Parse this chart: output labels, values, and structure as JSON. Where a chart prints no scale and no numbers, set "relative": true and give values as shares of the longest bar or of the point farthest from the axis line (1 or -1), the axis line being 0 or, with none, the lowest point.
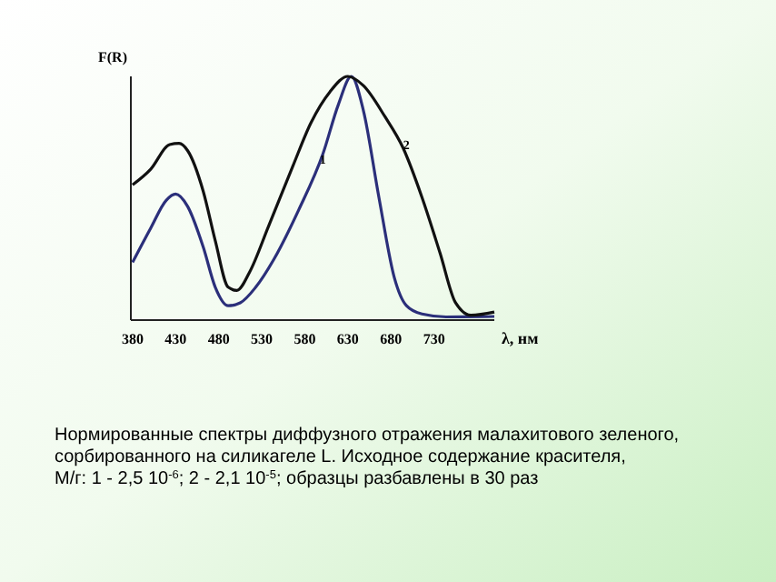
{
  "chart_data": {
    "type": "line",
    "relative": true,
    "ylabel": "F(R)",
    "xlabel": "λ, нм",
    "xlim": [
      378,
      800
    ],
    "xticks": [
      380,
      430,
      480,
      530,
      580,
      630,
      680,
      730
    ],
    "grid": false,
    "line_style": "solid",
    "series": [
      {
        "color": "#2b2f7a",
        "x": [
          380,
          401,
          419,
          430,
          444,
          462,
          476,
          491,
          505,
          523,
          544,
          573,
          601,
          619,
          634,
          648,
          666,
          684,
          698,
          716,
          744,
          800
        ],
        "values": [
          0.237,
          0.377,
          0.491,
          0.517,
          0.466,
          0.3,
          0.135,
          0.059,
          0.071,
          0.135,
          0.249,
          0.453,
          0.682,
          0.885,
          1.0,
          0.86,
          0.504,
          0.173,
          0.059,
          0.025,
          0.013,
          0.015
        ]
      },
      {
        "color": "#111111",
        "x": [
          380,
          401,
          423,
          434,
          444,
          462,
          476,
          491,
          501,
          516,
          537,
          566,
          587,
          609,
          630,
          648,
          673,
          694,
          716,
          737,
          755,
          773,
          800
        ],
        "values": [
          0.555,
          0.619,
          0.72,
          0.725,
          0.695,
          0.529,
          0.326,
          0.135,
          0.122,
          0.198,
          0.377,
          0.631,
          0.809,
          0.936,
          1.0,
          0.962,
          0.835,
          0.707,
          0.504,
          0.275,
          0.071,
          0.02,
          0.033
        ]
      }
    ],
    "annotations": [
      {
        "text": "1",
        "x": 601,
        "y": 0.64
      },
      {
        "text": "2",
        "x": 698,
        "y": 0.7
      },
      "Нормированные спектры диффузного отражения малахитового зеленого, сорбированного на силикагеле L. Исходное содержание красителя, М/г: 1 - 2,5 10$^{-6}$; 2 - 2,1 10$^{-5}$; образцы разбавлены в 30 раз"
    ]
  }
}
